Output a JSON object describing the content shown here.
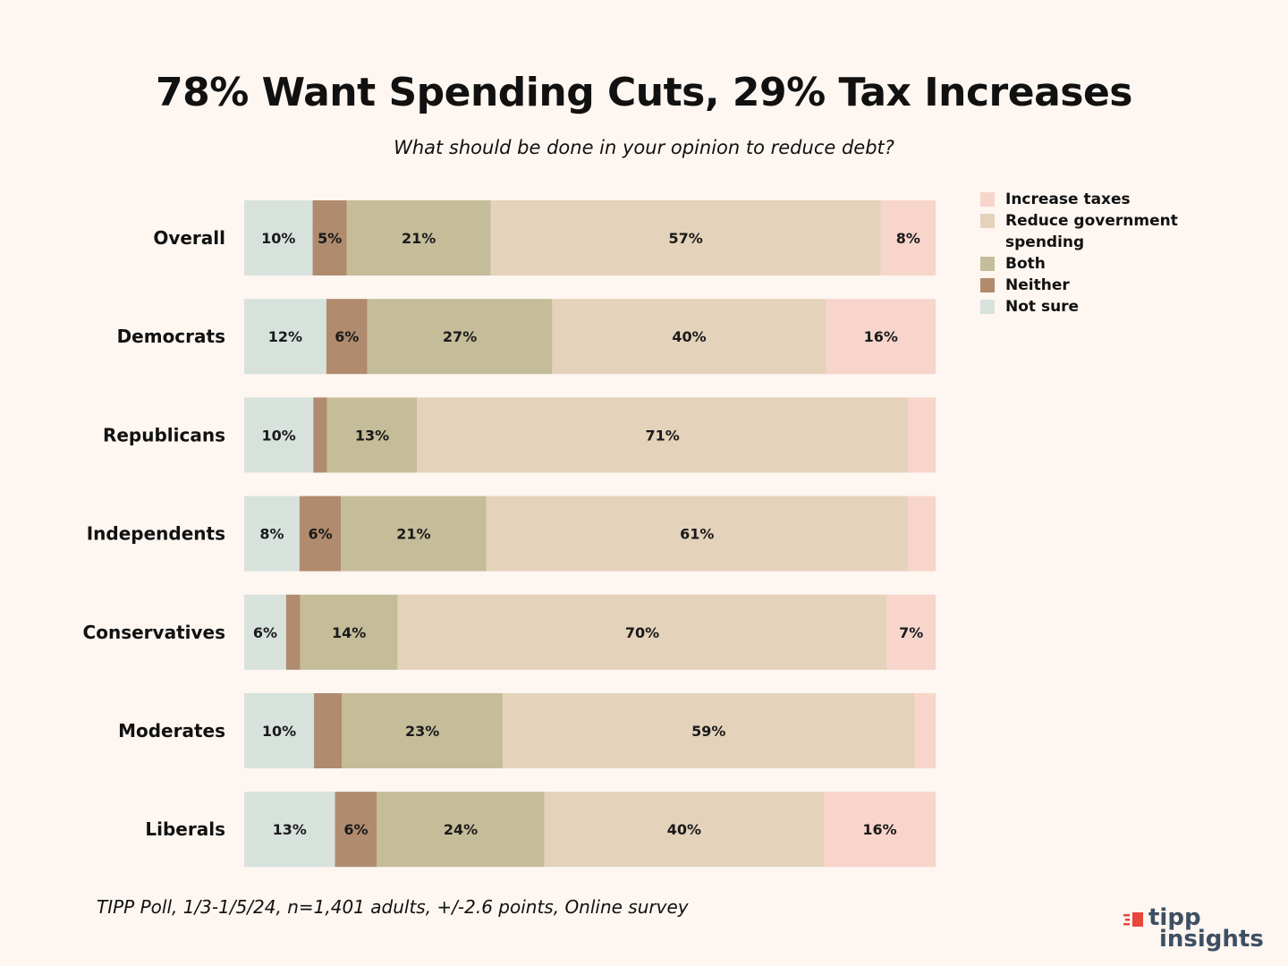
{
  "title": "78% Want Spending Cuts, 29% Tax Increases",
  "subtitle": "What should be done in your opinion to reduce debt?",
  "footnote": "TIPP Poll, 1/3-1/5/24, n=1,401 adults, +/-2.6 points, Online survey",
  "brand": {
    "line1": "tipp",
    "line2": "insights"
  },
  "colors": {
    "not_sure": "#d8e2dd",
    "neither": "#b08b6e",
    "both": "#c5bd99",
    "reduce_spending": "#e5d2bb",
    "increase_taxes": "#f8d5cb",
    "brand": "#e8473c"
  },
  "chart_data": {
    "type": "bar",
    "orientation": "horizontal",
    "stacked": true,
    "normalized": true,
    "categories": [
      "Overall",
      "Democrats",
      "Republicans",
      "Independents",
      "Conservatives",
      "Moderates",
      "Liberals"
    ],
    "series": [
      {
        "name": "Not sure",
        "key": "not_sure",
        "values": [
          10,
          12,
          10,
          8,
          6,
          10,
          13
        ],
        "labels": [
          "10%",
          "12%",
          "10%",
          "8%",
          "6%",
          "10%",
          "13%"
        ]
      },
      {
        "name": "Neither",
        "key": "neither",
        "values": [
          5,
          6,
          2,
          6,
          2,
          4,
          6
        ],
        "labels": [
          "5%",
          "6%",
          "",
          "6%",
          "",
          "",
          "6%"
        ]
      },
      {
        "name": "Both",
        "key": "both",
        "values": [
          21,
          27,
          13,
          21,
          14,
          23,
          24
        ],
        "labels": [
          "21%",
          "27%",
          "13%",
          "21%",
          "14%",
          "23%",
          "24%"
        ]
      },
      {
        "name": "Reduce government spending",
        "key": "reduce_spending",
        "values": [
          57,
          40,
          71,
          61,
          70,
          59,
          40
        ],
        "labels": [
          "57%",
          "40%",
          "71%",
          "61%",
          "70%",
          "59%",
          "40%"
        ]
      },
      {
        "name": "Increase taxes",
        "key": "increase_taxes",
        "values": [
          8,
          16,
          4,
          4,
          7,
          3,
          16
        ],
        "labels": [
          "8%",
          "16%",
          "",
          "",
          "7%",
          "",
          "16%"
        ]
      }
    ],
    "legend": [
      "Increase taxes",
      "Reduce government spending",
      "Both",
      "Neither",
      "Not sure"
    ],
    "legend_position": "top-right"
  }
}
